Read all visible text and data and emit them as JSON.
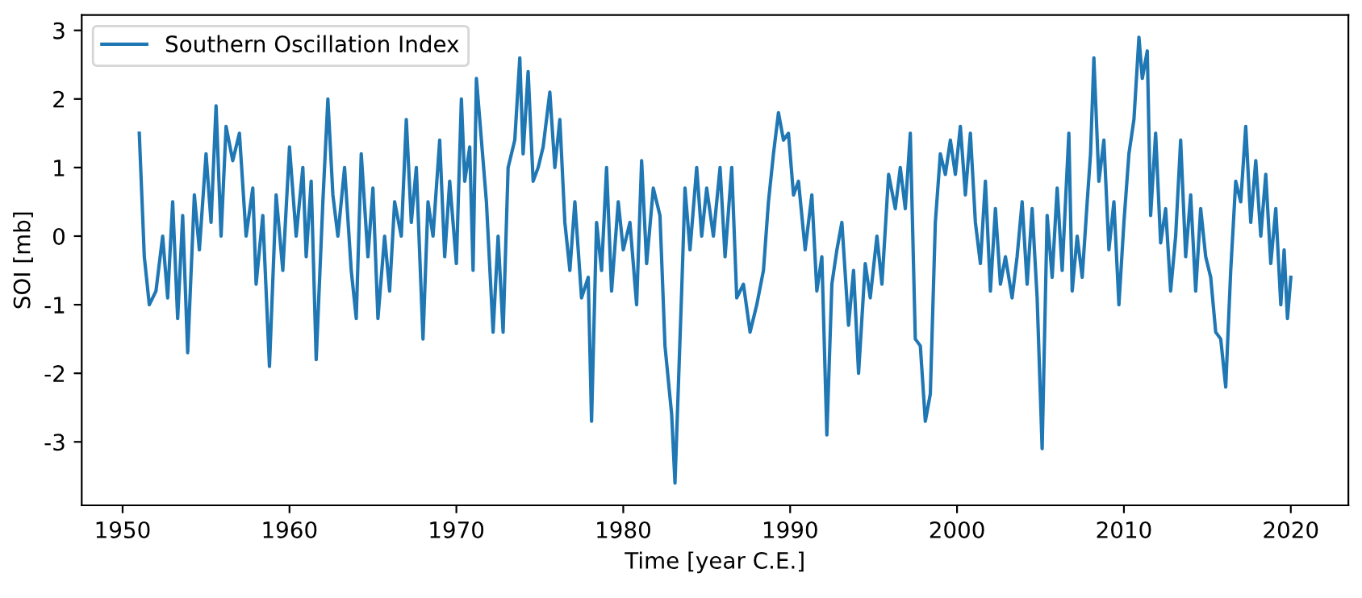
{
  "chart_data": {
    "type": "line",
    "xlabel": "Time [year C.E.]",
    "ylabel": "SOI [mb]",
    "xlim": [
      1947.55,
      2023.45
    ],
    "ylim": [
      -3.925,
      3.225
    ],
    "xticks": [
      1950,
      1960,
      1970,
      1980,
      1990,
      2000,
      2010,
      2020
    ],
    "yticks": [
      -3,
      -2,
      -1,
      0,
      1,
      2,
      3
    ],
    "grid": false,
    "legend": "top left",
    "marker": "none",
    "line_style": "solid",
    "series": [
      {
        "name": "Southern Oscillation Index",
        "color": "#1f77b4",
        "x": [
          1951.0,
          1951.3,
          1951.6,
          1952.0,
          1952.4,
          1952.7,
          1953.0,
          1953.3,
          1953.6,
          1953.9,
          1954.3,
          1954.6,
          1955.0,
          1955.3,
          1955.6,
          1955.9,
          1956.2,
          1956.6,
          1957.0,
          1957.4,
          1957.8,
          1958.0,
          1958.4,
          1958.8,
          1959.2,
          1959.6,
          1960.0,
          1960.4,
          1960.8,
          1961.0,
          1961.3,
          1961.6,
          1962.0,
          1962.3,
          1962.6,
          1962.9,
          1963.3,
          1963.7,
          1964.0,
          1964.3,
          1964.7,
          1965.0,
          1965.3,
          1965.7,
          1966.0,
          1966.3,
          1966.7,
          1967.0,
          1967.3,
          1967.6,
          1968.0,
          1968.3,
          1968.6,
          1969.0,
          1969.3,
          1969.6,
          1970.0,
          1970.3,
          1970.5,
          1970.8,
          1971.0,
          1971.2,
          1971.8,
          1972.2,
          1972.5,
          1972.8,
          1973.1,
          1973.5,
          1973.8,
          1974.0,
          1974.3,
          1974.6,
          1974.9,
          1975.2,
          1975.6,
          1975.9,
          1976.2,
          1976.5,
          1976.8,
          1977.1,
          1977.5,
          1977.9,
          1978.1,
          1978.4,
          1978.7,
          1979.0,
          1979.3,
          1979.7,
          1980.0,
          1980.4,
          1980.8,
          1981.1,
          1981.4,
          1981.8,
          1982.2,
          1982.5,
          1982.9,
          1983.1,
          1983.5,
          1983.7,
          1984.0,
          1984.4,
          1984.7,
          1985.0,
          1985.4,
          1985.8,
          1986.1,
          1986.5,
          1986.8,
          1987.2,
          1987.6,
          1988.0,
          1988.4,
          1988.7,
          1989.0,
          1989.3,
          1989.6,
          1989.9,
          1990.2,
          1990.5,
          1990.9,
          1991.3,
          1991.6,
          1991.9,
          1992.2,
          1992.5,
          1992.8,
          1993.1,
          1993.5,
          1993.8,
          1994.1,
          1994.5,
          1994.8,
          1995.2,
          1995.5,
          1995.9,
          1996.3,
          1996.6,
          1996.9,
          1997.2,
          1997.5,
          1997.8,
          1998.1,
          1998.4,
          1998.7,
          1999.0,
          1999.3,
          1999.6,
          1999.9,
          2000.2,
          2000.5,
          2000.8,
          2001.1,
          2001.4,
          2001.7,
          2002.0,
          2002.3,
          2002.6,
          2002.9,
          2003.3,
          2003.6,
          2003.9,
          2004.2,
          2004.5,
          2004.8,
          2005.1,
          2005.4,
          2005.7,
          2006.0,
          2006.3,
          2006.7,
          2006.9,
          2007.2,
          2007.5,
          2007.8,
          2008.0,
          2008.2,
          2008.5,
          2008.8,
          2009.1,
          2009.4,
          2009.7,
          2010.0,
          2010.3,
          2010.6,
          2010.9,
          2011.1,
          2011.4,
          2011.6,
          2011.9,
          2012.2,
          2012.5,
          2012.8,
          2013.1,
          2013.4,
          2013.7,
          2014.0,
          2014.3,
          2014.6,
          2014.9,
          2015.2,
          2015.5,
          2015.8,
          2016.1,
          2016.4,
          2016.7,
          2017.0,
          2017.3,
          2017.6,
          2017.9,
          2018.2,
          2018.5,
          2018.8,
          2019.1,
          2019.4,
          2019.6,
          2019.8,
          2020.0
        ],
        "values": [
          1.5,
          -0.3,
          -1.0,
          -0.8,
          0.0,
          -0.9,
          0.5,
          -1.2,
          0.3,
          -1.7,
          0.6,
          -0.2,
          1.2,
          0.2,
          1.9,
          0.0,
          1.6,
          1.1,
          1.5,
          0.0,
          0.7,
          -0.7,
          0.3,
          -1.9,
          0.6,
          -0.5,
          1.3,
          0.0,
          1.0,
          -0.3,
          0.8,
          -1.8,
          0.5,
          2.0,
          0.6,
          0.0,
          1.0,
          -0.5,
          -1.2,
          1.2,
          -0.3,
          0.7,
          -1.2,
          0.0,
          -0.8,
          0.5,
          0.0,
          1.7,
          0.2,
          1.0,
          -1.5,
          0.5,
          0.0,
          1.4,
          -0.3,
          0.8,
          -0.4,
          2.0,
          0.8,
          1.3,
          -0.5,
          2.3,
          0.5,
          -1.4,
          0.0,
          -1.4,
          1.0,
          1.4,
          2.6,
          1.2,
          2.4,
          0.8,
          1.0,
          1.3,
          2.1,
          1.0,
          1.7,
          0.2,
          -0.5,
          0.5,
          -0.9,
          -0.6,
          -2.7,
          0.2,
          -0.5,
          1.0,
          -0.8,
          0.5,
          -0.2,
          0.2,
          -1.0,
          1.1,
          -0.4,
          0.7,
          0.3,
          -1.6,
          -2.6,
          -3.6,
          -0.8,
          0.7,
          -0.2,
          1.0,
          0.0,
          0.7,
          0.0,
          1.0,
          -0.3,
          1.0,
          -0.9,
          -0.7,
          -1.4,
          -1.0,
          -0.5,
          0.5,
          1.2,
          1.8,
          1.4,
          1.5,
          0.6,
          0.8,
          -0.2,
          0.6,
          -0.8,
          -0.3,
          -2.9,
          -0.7,
          -0.2,
          0.2,
          -1.3,
          -0.5,
          -2.0,
          -0.4,
          -0.9,
          0.0,
          -0.7,
          0.9,
          0.4,
          1.0,
          0.4,
          1.5,
          -1.5,
          -1.6,
          -2.7,
          -2.3,
          0.2,
          1.2,
          0.9,
          1.4,
          0.9,
          1.6,
          0.6,
          1.5,
          0.2,
          -0.4,
          0.8,
          -0.8,
          0.4,
          -0.7,
          -0.3,
          -0.9,
          -0.3,
          0.5,
          -0.7,
          0.4,
          -0.9,
          -3.1,
          0.3,
          -0.6,
          0.7,
          -0.5,
          1.5,
          -0.8,
          0.0,
          -0.6,
          0.5,
          1.2,
          2.6,
          0.8,
          1.4,
          -0.2,
          0.5,
          -1.0,
          0.2,
          1.2,
          1.7,
          2.9,
          2.3,
          2.7,
          0.3,
          1.5,
          -0.1,
          0.4,
          -0.8,
          0.0,
          1.4,
          -0.3,
          0.6,
          -0.8,
          0.4,
          -0.3,
          -0.6,
          -1.4,
          -1.5,
          -2.2,
          -0.5,
          0.8,
          0.5,
          1.6,
          0.2,
          1.1,
          0.0,
          0.9,
          -0.4,
          0.4,
          -1.0,
          -0.2,
          -1.2,
          -0.6
        ]
      }
    ]
  }
}
